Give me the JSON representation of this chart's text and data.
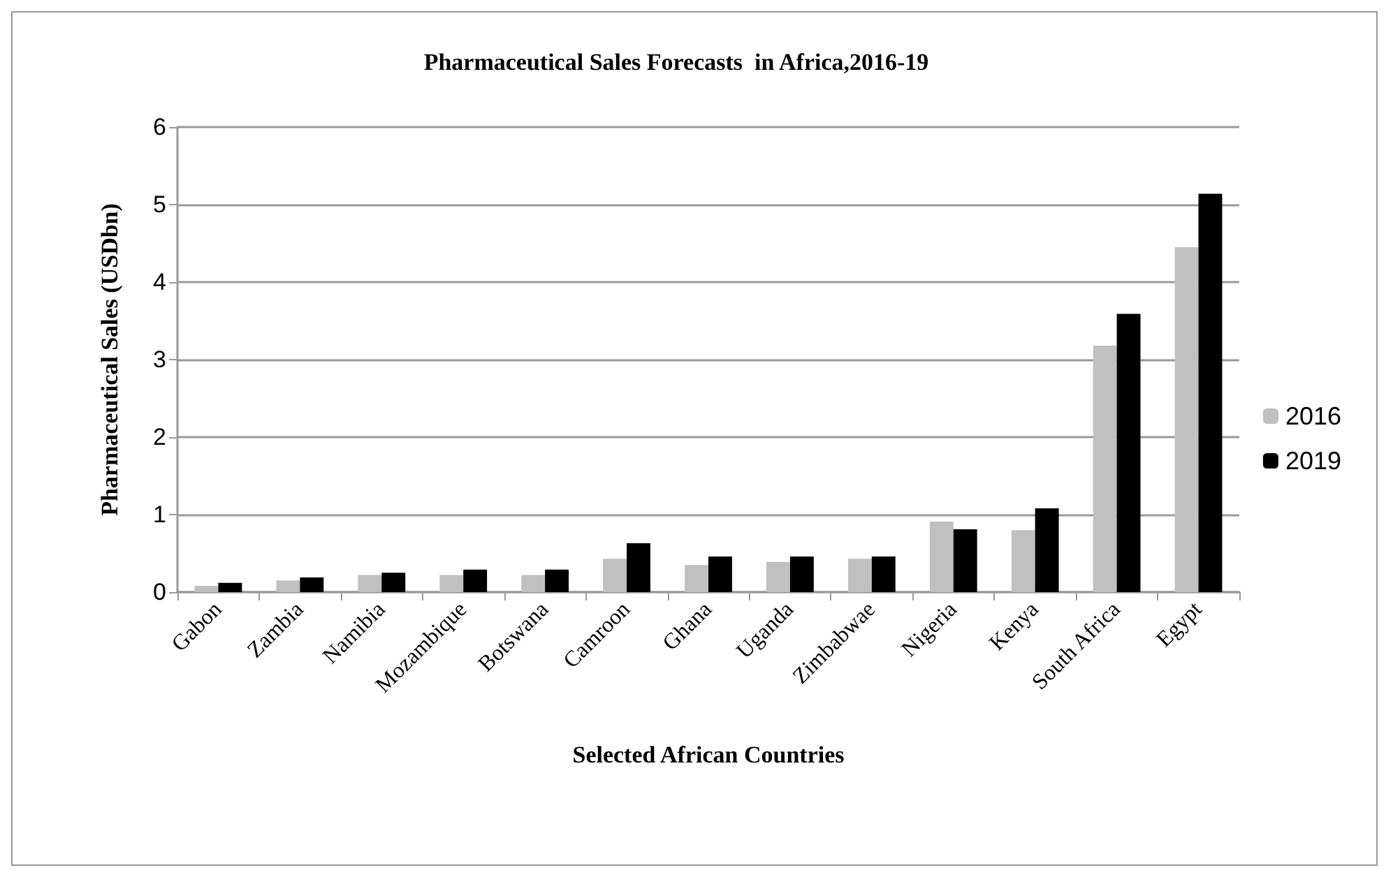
{
  "chart_data": {
    "type": "bar",
    "title": "Pharmaceutical Sales Forecasts  in Africa,2016-19",
    "xlabel": "Selected African Countries",
    "ylabel": "Pharmaceutical Sales (USDbn)",
    "categories": [
      "Gabon",
      "Zambia",
      "Namibia",
      "Mozambique",
      "Botswana",
      "Camroon",
      "Ghana",
      "Uganda",
      "Zimbabwae",
      "Nigeria",
      "Kenya",
      "South Africa",
      "Egypt"
    ],
    "series": [
      {
        "name": "2016",
        "color": "#c0c0c0",
        "values": [
          0.08,
          0.15,
          0.22,
          0.22,
          0.22,
          0.43,
          0.35,
          0.39,
          0.43,
          0.91,
          0.8,
          3.18,
          4.45
        ]
      },
      {
        "name": "2019",
        "color": "#000000",
        "values": [
          0.12,
          0.19,
          0.25,
          0.29,
          0.29,
          0.63,
          0.46,
          0.46,
          0.46,
          0.81,
          1.08,
          3.59,
          5.14
        ]
      }
    ],
    "ylim": [
      0,
      6
    ],
    "yticks": [
      0,
      1,
      2,
      3,
      4,
      5,
      6
    ],
    "grid": "y",
    "legend": "right"
  }
}
